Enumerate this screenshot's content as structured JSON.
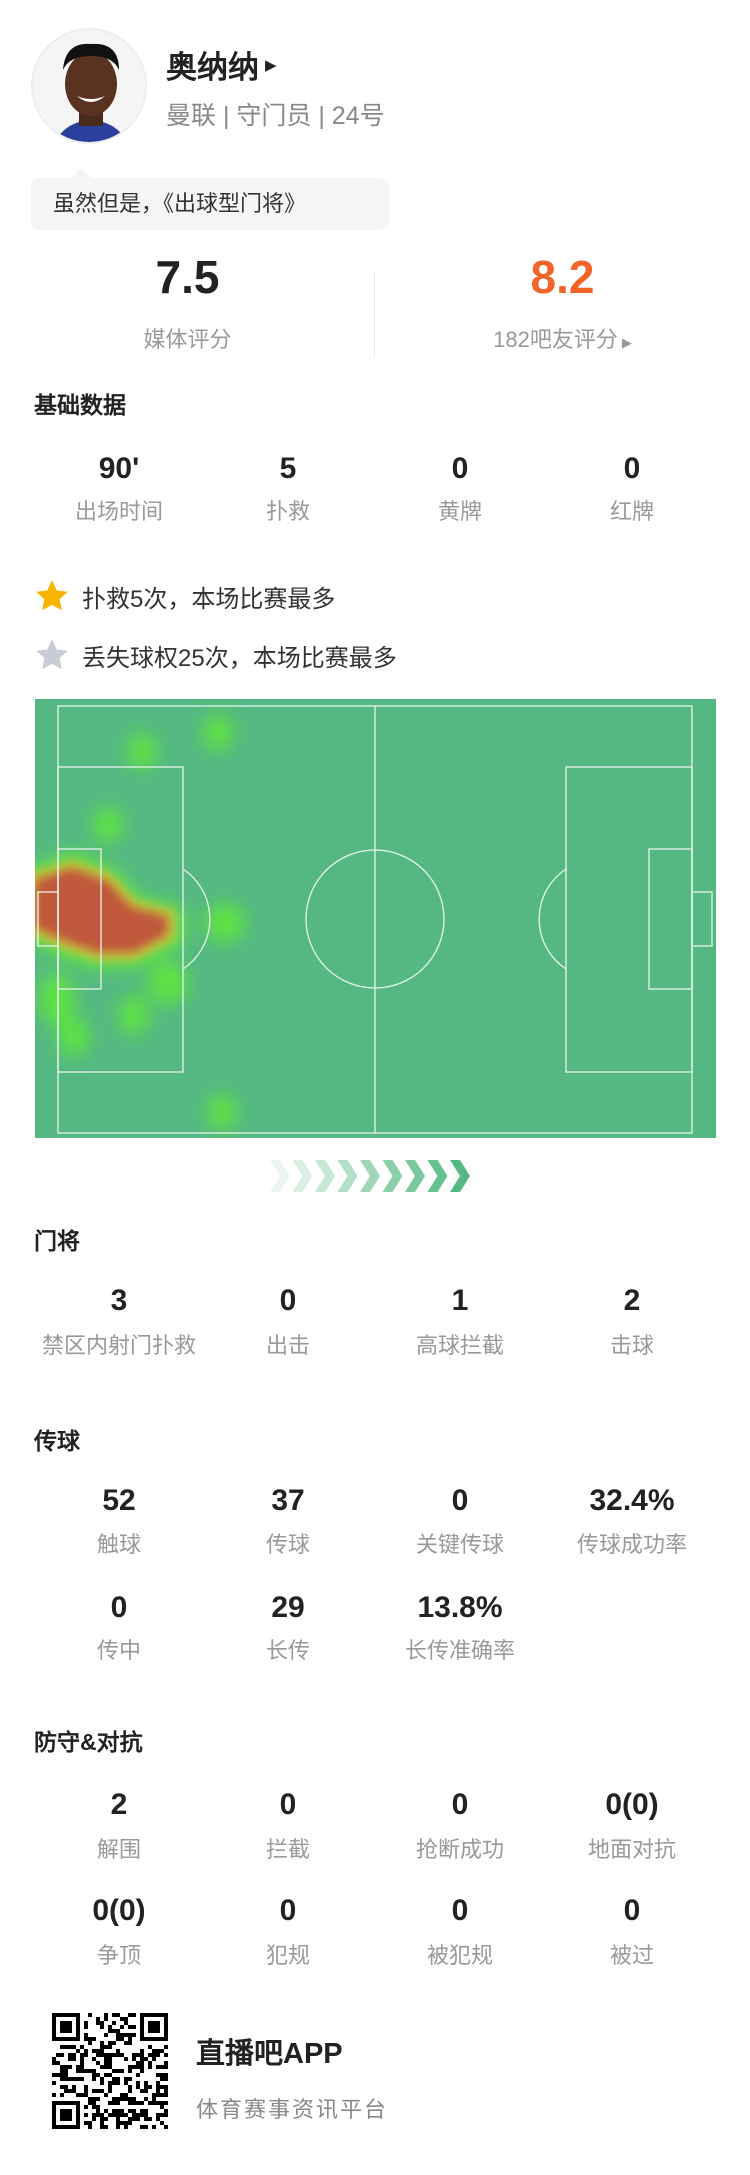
{
  "player": {
    "name": "奥纳纳",
    "subtitle": "曼联 | 守门员 | 24号",
    "tagline": "虽然但是，《出球型门将》",
    "avatar": "player-photo"
  },
  "ratings": {
    "media_value": "7.5",
    "media_label": "媒体评分",
    "fan_value": "8.2",
    "fan_label": "182吧友评分",
    "fan_color": "#f2652a"
  },
  "basic": {
    "title": "基础数据",
    "stats": [
      {
        "v": "90'",
        "l": "出场时间"
      },
      {
        "v": "5",
        "l": "扑救"
      },
      {
        "v": "0",
        "l": "黄牌"
      },
      {
        "v": "0",
        "l": "红牌"
      }
    ]
  },
  "highlights": [
    {
      "icon": "star-gold-icon",
      "text": "扑救5次，本场比赛最多",
      "color": "#f7b500"
    },
    {
      "icon": "star-gray-icon",
      "text": "丢失球权25次，本场比赛最多",
      "color": "#c9ccd4"
    }
  ],
  "heatmap": {
    "pitch_color": "#55b882",
    "hot_color": "#c0583a",
    "warm_color": "#5ee83a",
    "direction": "attacking-right"
  },
  "goalkeeping": {
    "title": "门将",
    "stats": [
      {
        "v": "3",
        "l": "禁区内射门扑救"
      },
      {
        "v": "0",
        "l": "出击"
      },
      {
        "v": "1",
        "l": "高球拦截"
      },
      {
        "v": "2",
        "l": "击球"
      }
    ]
  },
  "passing": {
    "title": "传球",
    "stats": [
      {
        "v": "52",
        "l": "触球"
      },
      {
        "v": "37",
        "l": "传球"
      },
      {
        "v": "0",
        "l": "关键传球"
      },
      {
        "v": "32.4%",
        "l": "传球成功率"
      },
      {
        "v": "0",
        "l": "传中"
      },
      {
        "v": "29",
        "l": "长传"
      },
      {
        "v": "13.8%",
        "l": "长传准确率"
      }
    ]
  },
  "defense": {
    "title": "防守&对抗",
    "stats": [
      {
        "v": "2",
        "l": "解围"
      },
      {
        "v": "0",
        "l": "拦截"
      },
      {
        "v": "0",
        "l": "抢断成功"
      },
      {
        "v": "0(0)",
        "l": "地面对抗"
      },
      {
        "v": "0(0)",
        "l": "争顶"
      },
      {
        "v": "0",
        "l": "犯规"
      },
      {
        "v": "0",
        "l": "被犯规"
      },
      {
        "v": "0",
        "l": "被过"
      }
    ]
  },
  "footer": {
    "brand": "直播吧APP",
    "slogan": "体育赛事资讯平台",
    "qr": "qr-code"
  }
}
